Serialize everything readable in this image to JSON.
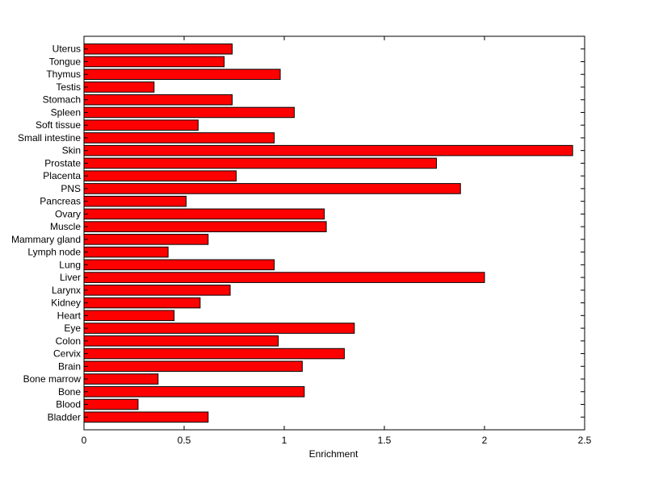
{
  "chart_data": {
    "type": "bar",
    "orientation": "horizontal",
    "categories": [
      "Bladder",
      "Blood",
      "Bone",
      "Bone marrow",
      "Brain",
      "Cervix",
      "Colon",
      "Eye",
      "Heart",
      "Kidney",
      "Larynx",
      "Liver",
      "Lung",
      "Lymph node",
      "Mammary gland",
      "Muscle",
      "Ovary",
      "Pancreas",
      "PNS",
      "Placenta",
      "Prostate",
      "Skin",
      "Small intestine",
      "Soft tissue",
      "Spleen",
      "Stomach",
      "Testis",
      "Thymus",
      "Tongue",
      "Uterus"
    ],
    "values": [
      0.62,
      0.27,
      1.1,
      0.37,
      1.09,
      1.3,
      0.97,
      1.35,
      0.45,
      0.58,
      0.73,
      2.0,
      0.95,
      0.42,
      0.62,
      1.21,
      1.2,
      0.51,
      1.88,
      0.76,
      1.76,
      2.44,
      0.95,
      0.57,
      1.05,
      0.74,
      0.35,
      0.98,
      0.7,
      0.74
    ],
    "xlabel": "Enrichment",
    "ylabel": "",
    "title": "",
    "xlim": [
      0,
      2.5
    ],
    "xticks": [
      0,
      0.5,
      1,
      1.5,
      2,
      2.5
    ],
    "xtick_labels": [
      "0",
      "0.5",
      "1",
      "1.5",
      "2",
      "2.5"
    ],
    "grid": false,
    "bar_color": "#ff0000",
    "bar_edge_color": "#000000"
  }
}
